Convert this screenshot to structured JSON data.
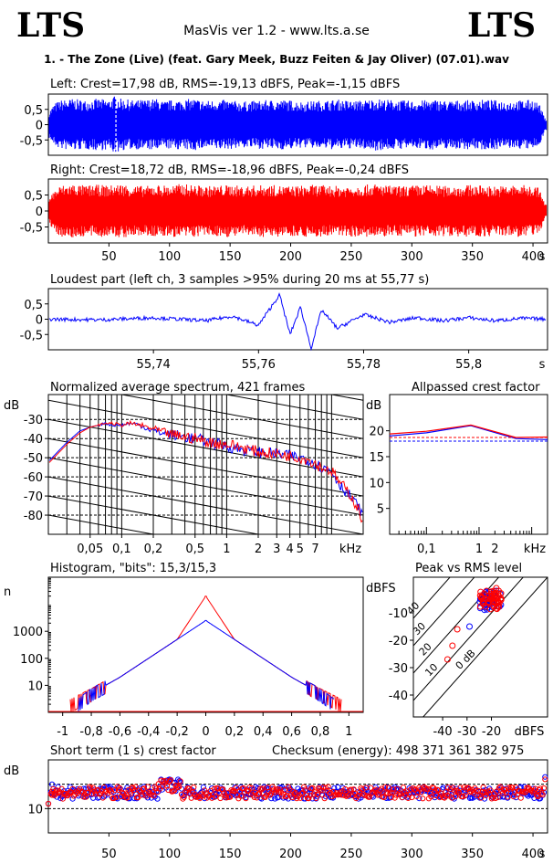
{
  "header": {
    "logo_left": "LTS",
    "logo_right": "LTS",
    "app_title": "MasVis ver 1.2 - www.lts.a.se",
    "track_title": "1. - The Zone (Live) (feat. Gary Meek, Buzz Feiten & Jay Oliver) (07.01).wav"
  },
  "colors": {
    "left": "#0000ff",
    "right": "#ff0000",
    "axis": "#000000"
  },
  "chart_data": [
    {
      "id": "left-waveform",
      "type": "area",
      "title": "Left: Crest=17,98 dB, RMS=-19,13 dBFS, Peak=-1,15 dBFS",
      "series": [
        {
          "name": "Left",
          "color": "#0000ff"
        }
      ],
      "ylim": [
        -1,
        1
      ],
      "yticks": [
        "0,5",
        "0",
        "-0,5"
      ],
      "yticks_values": [
        0.5,
        0,
        -0.5
      ],
      "xlim": [
        0,
        412
      ],
      "envelope": {
        "x": [
          0,
          5,
          10,
          20,
          30,
          40,
          50,
          55,
          60,
          70,
          80,
          90,
          95,
          100,
          110,
          120,
          130,
          140,
          150,
          160,
          170,
          180,
          190,
          200,
          210,
          220,
          230,
          240,
          250,
          260,
          270,
          280,
          290,
          300,
          310,
          320,
          330,
          340,
          350,
          360,
          370,
          380,
          390,
          400,
          405,
          410
        ],
        "upper": [
          0.4,
          0.7,
          0.8,
          0.85,
          0.8,
          0.85,
          0.82,
          0.95,
          0.85,
          0.8,
          0.82,
          0.85,
          0.75,
          0.8,
          0.82,
          0.85,
          0.78,
          0.82,
          0.8,
          0.75,
          0.78,
          0.8,
          0.82,
          0.8,
          0.75,
          0.78,
          0.8,
          0.82,
          0.78,
          0.8,
          0.85,
          0.82,
          0.8,
          0.78,
          0.8,
          0.82,
          0.78,
          0.8,
          0.8,
          0.82,
          0.8,
          0.78,
          0.8,
          0.82,
          0.7,
          0.2
        ]
      },
      "marker_x": 55.77
    },
    {
      "id": "right-waveform",
      "type": "area",
      "title": "Right: Crest=18,72 dB, RMS=-18,96 dBFS, Peak=-0,24 dBFS",
      "series": [
        {
          "name": "Right",
          "color": "#ff0000"
        }
      ],
      "ylim": [
        -1,
        1
      ],
      "yticks": [
        "0,5",
        "0",
        "-0,5"
      ],
      "yticks_values": [
        0.5,
        0,
        -0.5
      ],
      "xlim": [
        0,
        412
      ],
      "xticks": [
        "50",
        "100",
        "150",
        "200",
        "250",
        "300",
        "350",
        "400"
      ],
      "xticks_values": [
        50,
        100,
        150,
        200,
        250,
        300,
        350,
        400
      ],
      "xunit": "s",
      "envelope": {
        "x": [
          0,
          5,
          10,
          20,
          30,
          40,
          50,
          60,
          70,
          80,
          90,
          100,
          110,
          120,
          130,
          140,
          150,
          160,
          170,
          180,
          190,
          200,
          210,
          220,
          230,
          240,
          250,
          260,
          270,
          280,
          290,
          300,
          310,
          320,
          330,
          340,
          350,
          360,
          370,
          380,
          390,
          400,
          405,
          410
        ],
        "upper": [
          0.4,
          0.65,
          0.8,
          0.85,
          0.8,
          0.82,
          0.8,
          0.85,
          0.8,
          0.78,
          0.82,
          0.8,
          0.85,
          0.82,
          0.78,
          0.8,
          0.82,
          0.78,
          0.8,
          0.82,
          0.8,
          0.78,
          0.8,
          0.82,
          0.8,
          0.78,
          0.8,
          0.82,
          0.85,
          0.8,
          0.78,
          0.8,
          0.82,
          0.8,
          0.78,
          0.8,
          0.82,
          0.8,
          0.78,
          0.8,
          0.82,
          0.78,
          0.75,
          0.2
        ]
      }
    },
    {
      "id": "loudest-part",
      "type": "line",
      "title": "Loudest part (left  ch, 3 samples >95% during 20 ms at 55,77 s)",
      "series": [
        {
          "name": "Left",
          "color": "#0000ff"
        }
      ],
      "ylim": [
        -1,
        1
      ],
      "yticks": [
        "0,5",
        "0",
        "-0,5"
      ],
      "yticks_values": [
        0.5,
        0,
        -0.5
      ],
      "xlim": [
        55.72,
        55.815
      ],
      "xticks": [
        "55,74",
        "55,76",
        "55,78",
        "55,8"
      ],
      "xticks_values": [
        55.74,
        55.76,
        55.78,
        55.8
      ],
      "xunit": "s",
      "x": [
        55.72,
        55.73,
        55.74,
        55.75,
        55.755,
        55.76,
        55.764,
        55.766,
        55.768,
        55.77,
        55.772,
        55.775,
        55.78,
        55.785,
        55.79,
        55.795,
        55.8,
        55.805,
        55.81,
        55.815
      ],
      "y": [
        0.0,
        -0.02,
        0.05,
        -0.05,
        0.1,
        -0.2,
        0.8,
        -0.5,
        0.4,
        -0.95,
        0.3,
        -0.3,
        0.15,
        -0.1,
        0.05,
        -0.05,
        0.05,
        -0.05,
        0.03,
        0.0
      ]
    },
    {
      "id": "avg-spectrum",
      "type": "line",
      "title": "Normalized average spectrum, 421 frames",
      "ylabel": "dB",
      "ylim": [
        -90,
        -17
      ],
      "yticks": [
        "-30",
        "-40",
        "-50",
        "-60",
        "-70",
        "-80"
      ],
      "yticks_values": [
        -30,
        -40,
        -50,
        -60,
        -70,
        -80
      ],
      "xscale": "log",
      "xlim": [
        0.02,
        20
      ],
      "xticks": [
        "0,05",
        "0,1",
        "0,2",
        "0,5",
        "1",
        "2",
        "3",
        "4",
        "5",
        "7"
      ],
      "xticks_values": [
        0.05,
        0.1,
        0.2,
        0.5,
        1,
        2,
        3,
        4,
        5,
        7
      ],
      "xunit": "kHz",
      "series": [
        {
          "name": "Left",
          "color": "#0000ff",
          "x": [
            0.02,
            0.03,
            0.04,
            0.05,
            0.06,
            0.07,
            0.08,
            0.1,
            0.12,
            0.15,
            0.2,
            0.3,
            0.5,
            0.7,
            1,
            1.5,
            2,
            3,
            4,
            5,
            6,
            7,
            8,
            10,
            12,
            15,
            18,
            20
          ],
          "y": [
            -52,
            -42,
            -36,
            -34,
            -33,
            -32,
            -33,
            -33,
            -32,
            -33,
            -36,
            -38,
            -40,
            -42,
            -44,
            -46,
            -47,
            -48,
            -49,
            -50,
            -51,
            -53,
            -55,
            -57,
            -64,
            -70,
            -76,
            -80
          ]
        },
        {
          "name": "Right",
          "color": "#ff0000",
          "x": [
            0.02,
            0.03,
            0.04,
            0.05,
            0.06,
            0.07,
            0.08,
            0.1,
            0.12,
            0.15,
            0.2,
            0.3,
            0.5,
            0.7,
            1,
            1.5,
            2,
            3,
            4,
            5,
            6,
            7,
            8,
            10,
            12,
            15,
            18,
            20
          ],
          "y": [
            -53,
            -43,
            -37,
            -34,
            -33,
            -32,
            -32,
            -33,
            -32,
            -33,
            -35,
            -38,
            -40,
            -42,
            -43,
            -45,
            -47,
            -48,
            -49,
            -50,
            -51,
            -53,
            -55,
            -57,
            -63,
            -69,
            -77,
            -84
          ]
        }
      ]
    },
    {
      "id": "allpassed-crest",
      "type": "line",
      "title": "Allpassed crest factor",
      "ylabel": "dB",
      "ylim": [
        0,
        27
      ],
      "yticks": [
        "20",
        "15",
        "10",
        "5"
      ],
      "yticks_values": [
        20,
        15,
        10,
        5
      ],
      "xscale": "log",
      "xlim": [
        0.02,
        20
      ],
      "xticks": [
        "0,1",
        "1",
        "2",
        "kHz"
      ],
      "xticks_values": [
        0.1,
        1,
        2
      ],
      "xunit": "kHz",
      "series": [
        {
          "name": "Left",
          "color": "#0000ff",
          "x": [
            0.02,
            0.1,
            0.7,
            5,
            20
          ],
          "y": [
            19,
            19.6,
            21,
            18.5,
            18.3
          ],
          "ref": 18.0
        },
        {
          "name": "Right",
          "color": "#ff0000",
          "x": [
            0.02,
            0.1,
            0.7,
            5,
            20
          ],
          "y": [
            19.4,
            19.9,
            21.1,
            18.7,
            18.8
          ],
          "ref": 18.7
        }
      ]
    },
    {
      "id": "histogram",
      "type": "line",
      "title": "Histogram, \"bits\": 15,3/15,3",
      "ylabel": "n",
      "yscale": "log",
      "ylim": [
        1,
        100000
      ],
      "yticks": [
        "1000",
        "100",
        "10"
      ],
      "yticks_values": [
        1000,
        100,
        10
      ],
      "xlim": [
        -1.1,
        1.1
      ],
      "xticks": [
        "-1",
        "-0,8",
        "-0,6",
        "-0,4",
        "-0,2",
        "0",
        "0,2",
        "0,4",
        "0,6",
        "0,8",
        "1"
      ],
      "xticks_values": [
        -1,
        -0.8,
        -0.6,
        -0.4,
        -0.2,
        0,
        0.2,
        0.4,
        0.6,
        0.8,
        1
      ],
      "series": [
        {
          "name": "Left",
          "color": "#0000ff",
          "x": [
            -0.9,
            -0.8,
            -0.6,
            -0.4,
            -0.2,
            0,
            0.2,
            0.4,
            0.6,
            0.8,
            0.9
          ],
          "y": [
            2,
            5,
            20,
            100,
            500,
            2500,
            500,
            100,
            20,
            5,
            2
          ]
        },
        {
          "name": "Right",
          "color": "#ff0000",
          "x": [
            -0.95,
            -0.8,
            -0.6,
            -0.4,
            -0.2,
            0,
            0.2,
            0.4,
            0.6,
            0.8,
            0.95
          ],
          "y": [
            2,
            5,
            20,
            100,
            500,
            20000,
            500,
            100,
            20,
            5,
            2
          ]
        }
      ]
    },
    {
      "id": "peak-vs-rms",
      "type": "scatter",
      "title": "Peak vs RMS level",
      "ylabel": "dBFS",
      "xlabel": "dBFS",
      "xlim": [
        -52,
        3
      ],
      "ylim": [
        -48,
        3
      ],
      "yticks": [
        "-10",
        "-20",
        "-30",
        "-40"
      ],
      "yticks_values": [
        -10,
        -20,
        -30,
        -40
      ],
      "xticks": [
        "-40",
        "-30",
        "-20"
      ],
      "xticks_values": [
        -40,
        -30,
        -20
      ],
      "diagonal_labels": [
        "40",
        "30",
        "20",
        "10",
        "0 dB"
      ],
      "diagonal_offsets": [
        40,
        30,
        20,
        10,
        0
      ],
      "series": [
        {
          "name": "Left",
          "color": "#0000ff",
          "x": [
            -23,
            -22,
            -21,
            -20,
            -19,
            -18,
            -22,
            -21,
            -20,
            -24,
            -19,
            -29
          ],
          "y": [
            -4,
            -3,
            -5,
            -4,
            -3,
            -2,
            -6,
            -7,
            -5,
            -5,
            -4,
            -15
          ]
        },
        {
          "name": "Right",
          "color": "#ff0000",
          "x": [
            -23,
            -22,
            -21,
            -20,
            -19,
            -18,
            -22,
            -21,
            -20,
            -24,
            -19,
            -17,
            -34,
            -36,
            -38
          ],
          "y": [
            -3,
            -2,
            -4,
            -3,
            -2,
            -1,
            -5,
            -6,
            -4,
            -4,
            -3,
            -2,
            -16,
            -22,
            -27
          ]
        }
      ]
    },
    {
      "id": "short-term-crest",
      "type": "scatter",
      "title": "Short term (1 s) crest factor",
      "annotation": "Checksum (energy):   498 371 361 382 975",
      "ylabel": "dB",
      "ylim": [
        0,
        30
      ],
      "yticks": [
        "10"
      ],
      "yticks_values": [
        10
      ],
      "ref_lines": [
        10,
        20
      ],
      "xlim": [
        0,
        412
      ],
      "xticks": [
        "50",
        "100",
        "150",
        "200",
        "250",
        "300",
        "350",
        "400"
      ],
      "xticks_values": [
        50,
        100,
        150,
        200,
        250,
        300,
        350,
        400
      ],
      "xunit": "s",
      "series": [
        {
          "name": "Left",
          "color": "#0000ff",
          "x": [
            0,
            3,
            6,
            100,
            404,
            410
          ],
          "y": [
            12,
            20,
            16,
            22,
            16,
            23
          ]
        },
        {
          "name": "Right",
          "color": "#ff0000",
          "x": [
            0,
            3,
            6,
            100,
            404,
            410
          ],
          "y": [
            12,
            17,
            16,
            21,
            15,
            22
          ]
        }
      ]
    }
  ]
}
